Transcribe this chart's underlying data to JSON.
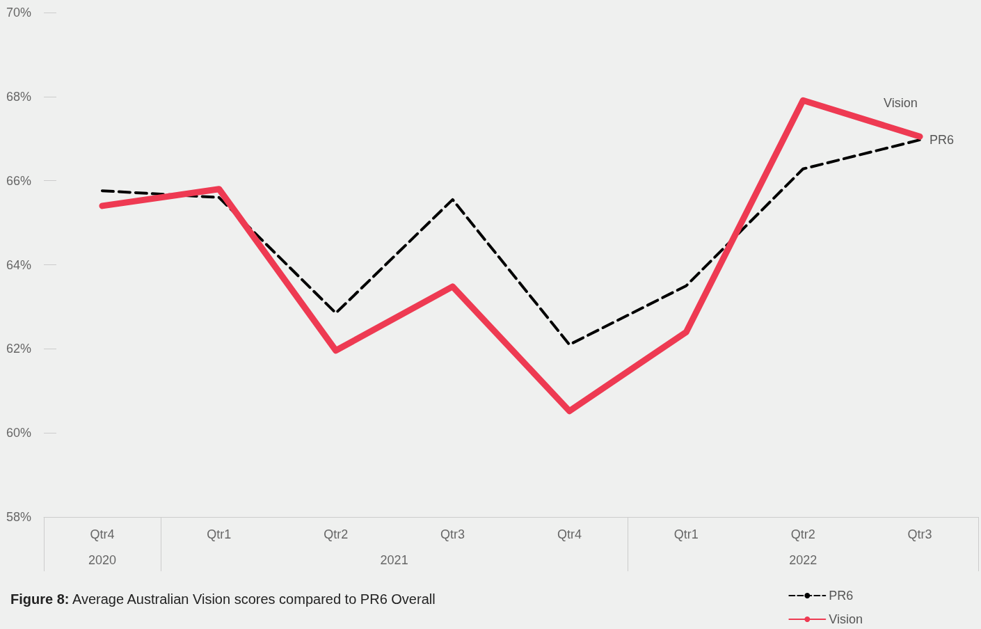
{
  "chart_data": {
    "type": "line",
    "title": "Figure 8: Average Australian Vision scores compared to PR6 Overall",
    "categories": [
      "Qtr4",
      "Qtr1",
      "Qtr2",
      "Qtr3",
      "Qtr4",
      "Qtr1",
      "Qtr2",
      "Qtr3"
    ],
    "annotations": [
      "2020",
      "2021",
      "2022"
    ],
    "series": [
      {
        "name": "PR6",
        "color": "#000000",
        "line_style": "dashed",
        "values": [
          65.76,
          65.6,
          62.85,
          65.55,
          62.1,
          63.5,
          66.28,
          66.97
        ]
      },
      {
        "name": "Vision",
        "color": "#ee3a52",
        "line_style": "solid",
        "values": [
          65.4,
          65.8,
          61.96,
          63.48,
          60.52,
          62.4,
          67.91,
          67.05
        ]
      }
    ],
    "ylim": [
      58,
      70
    ],
    "yticks": [
      {
        "value": 58,
        "label": "58%"
      },
      {
        "value": 60,
        "label": "60%"
      },
      {
        "value": 62,
        "label": "62%"
      },
      {
        "value": 64,
        "label": "64%"
      },
      {
        "value": 66,
        "label": "66%"
      },
      {
        "value": 68,
        "label": "68%"
      },
      {
        "value": 70,
        "label": "70%"
      }
    ],
    "grid": false,
    "legend": "bottom right",
    "marker": "none"
  }
}
